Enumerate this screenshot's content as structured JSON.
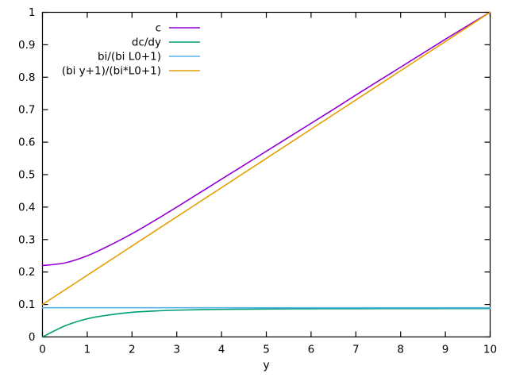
{
  "figure": {
    "background": "#ffffff",
    "border_color": "#000000",
    "text_color": "#000000"
  },
  "chart_data": {
    "type": "line",
    "title": "",
    "xlabel": "y",
    "ylabel": "",
    "xlim": [
      0,
      10
    ],
    "ylim": [
      0,
      1
    ],
    "grid": false,
    "legend_position": "top-center-inside",
    "xticks": {
      "values": [
        0,
        1,
        2,
        3,
        4,
        5,
        6,
        7,
        8,
        9,
        10
      ],
      "labels": [
        "0",
        "1",
        "2",
        "3",
        "4",
        "5",
        "6",
        "7",
        "8",
        "9",
        "10"
      ]
    },
    "yticks": {
      "values": [
        0,
        0.1,
        0.2,
        0.3,
        0.4,
        0.5,
        0.6,
        0.7,
        0.8,
        0.9,
        1
      ],
      "labels": [
        "0",
        "0.1",
        "0.2",
        "0.3",
        "0.4",
        "0.5",
        "0.6",
        "0.7",
        "0.8",
        "0.9",
        "1"
      ]
    },
    "x": [
      0,
      0.5,
      1,
      1.5,
      2,
      2.5,
      3,
      3.5,
      4,
      4.5,
      5,
      5.5,
      6,
      6.5,
      7,
      7.5,
      8,
      8.5,
      9,
      9.5,
      10
    ],
    "series": [
      {
        "name": "c",
        "color": "#9400D3",
        "values": [
          0.22,
          0.228,
          0.25,
          0.282,
          0.318,
          0.358,
          0.4,
          0.443,
          0.486,
          0.529,
          0.572,
          0.615,
          0.658,
          0.701,
          0.745,
          0.788,
          0.831,
          0.874,
          0.917,
          0.959,
          1.0
        ]
      },
      {
        "name": "dc/dy",
        "color": "#009E73",
        "values": [
          0.0,
          0.034,
          0.056,
          0.068,
          0.076,
          0.08,
          0.0825,
          0.084,
          0.085,
          0.0855,
          0.086,
          0.0865,
          0.0867,
          0.0869,
          0.087,
          0.0871,
          0.0872,
          0.0873,
          0.0874,
          0.0874,
          0.0875
        ]
      },
      {
        "name": "bi/(bi L0+1)",
        "color": "#56B4E9",
        "values": [
          0.09,
          0.09,
          0.09,
          0.09,
          0.09,
          0.09,
          0.09,
          0.09,
          0.09,
          0.09,
          0.09,
          0.09,
          0.09,
          0.09,
          0.09,
          0.09,
          0.09,
          0.09,
          0.09,
          0.09,
          0.09
        ]
      },
      {
        "name": "(bi y+1)/(bi*L0+1)",
        "color": "#E69F00",
        "values": [
          0.1,
          0.145,
          0.19,
          0.235,
          0.28,
          0.325,
          0.37,
          0.415,
          0.46,
          0.505,
          0.55,
          0.595,
          0.64,
          0.685,
          0.73,
          0.775,
          0.82,
          0.865,
          0.91,
          0.955,
          1.0
        ]
      }
    ]
  }
}
